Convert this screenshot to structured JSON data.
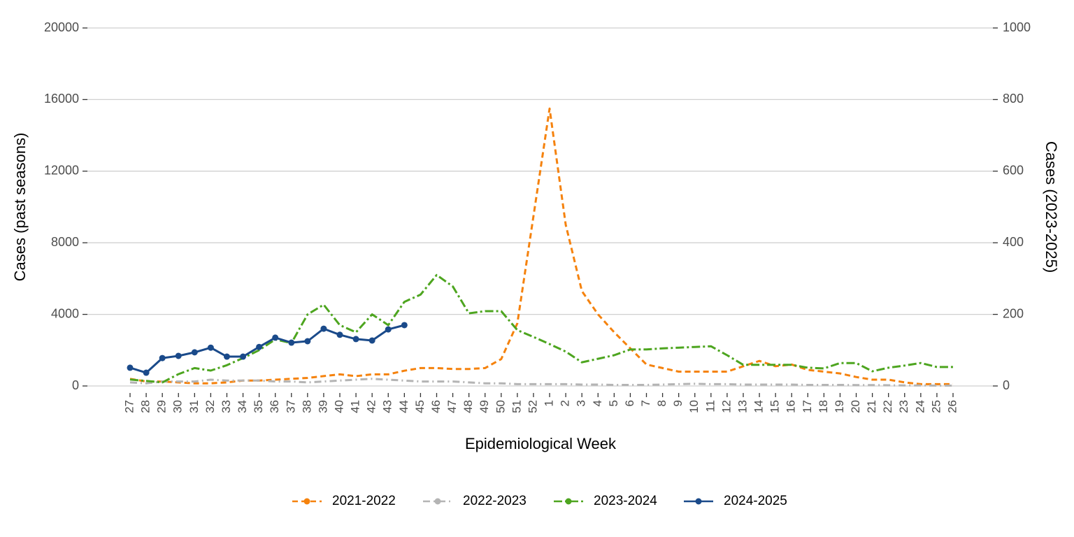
{
  "chart_data": {
    "type": "line",
    "xlabel": "Epidemiological Week",
    "ylabel": "Cases (past seasons)",
    "y2label": "Cases (2023-2025)",
    "categories": [
      "27",
      "28",
      "29",
      "30",
      "31",
      "32",
      "33",
      "34",
      "35",
      "36",
      "37",
      "38",
      "39",
      "40",
      "41",
      "42",
      "43",
      "44",
      "45",
      "46",
      "47",
      "48",
      "49",
      "50",
      "51",
      "52",
      "1",
      "2",
      "3",
      "4",
      "5",
      "6",
      "7",
      "8",
      "9",
      "10",
      "11",
      "12",
      "13",
      "14",
      "15",
      "16",
      "17",
      "18",
      "19",
      "20",
      "21",
      "22",
      "23",
      "24",
      "25",
      "26"
    ],
    "ylim": [
      0,
      20000
    ],
    "yticks": [
      0,
      4000,
      8000,
      12000,
      16000,
      20000
    ],
    "y2lim": [
      0,
      1000
    ],
    "y2ticks": [
      0,
      200,
      400,
      600,
      800,
      1000
    ],
    "grid": true,
    "legend": "bottom",
    "series": [
      {
        "name": "2021-2022",
        "color": "#f5820d",
        "dash": "8,5",
        "values": [
          400,
          250,
          250,
          200,
          150,
          150,
          200,
          300,
          300,
          350,
          400,
          450,
          550,
          650,
          550,
          650,
          650,
          850,
          1000,
          1000,
          950,
          950,
          1000,
          1500,
          3500,
          9500,
          15500,
          9000,
          5300,
          4000,
          3000,
          2100,
          1200,
          1000,
          800,
          800,
          800,
          800,
          1100,
          1400,
          1100,
          1200,
          900,
          800,
          700,
          500,
          350,
          350,
          200,
          100,
          100,
          100
        ]
      },
      {
        "name": "2022-2023",
        "color": "#b4b4b4",
        "dash": "10,5,2,5",
        "values": [
          200,
          150,
          250,
          250,
          250,
          350,
          300,
          300,
          300,
          250,
          250,
          200,
          250,
          300,
          350,
          400,
          350,
          300,
          250,
          250,
          250,
          200,
          150,
          150,
          100,
          100,
          100,
          100,
          80,
          80,
          60,
          60,
          60,
          80,
          100,
          120,
          100,
          100,
          80,
          80,
          80,
          80,
          60,
          60,
          60,
          50,
          50,
          40,
          30,
          30,
          20,
          20
        ]
      },
      {
        "name": "2023-2024",
        "color": "#4da51f",
        "dash": "12,4,3,4",
        "axis": "y2",
        "values": [
          18,
          14,
          10,
          33,
          50,
          43,
          58,
          78,
          100,
          130,
          120,
          200,
          227,
          170,
          150,
          200,
          170,
          235,
          255,
          310,
          278,
          203,
          209,
          209,
          156,
          137,
          117,
          96,
          66,
          76,
          86,
          102,
          102,
          105,
          107,
          109,
          111,
          86,
          59,
          59,
          59,
          59,
          51,
          49,
          64,
          64,
          41,
          51,
          57,
          64,
          53,
          53
        ]
      },
      {
        "name": "2024-2025",
        "color": "#1a4a8a",
        "dash": "none",
        "markers": true,
        "axis": "y2",
        "values": [
          51,
          37,
          78,
          84,
          94,
          107,
          82,
          82,
          109,
          135,
          121,
          125,
          160,
          143,
          131,
          127,
          158,
          170,
          null,
          null,
          null,
          null,
          null,
          null,
          null,
          null,
          null,
          null,
          null,
          null,
          null,
          null,
          null,
          null,
          null,
          null,
          null,
          null,
          null,
          null,
          null,
          null,
          null,
          null,
          null,
          null,
          null,
          null,
          null,
          null,
          null,
          null
        ]
      }
    ]
  }
}
